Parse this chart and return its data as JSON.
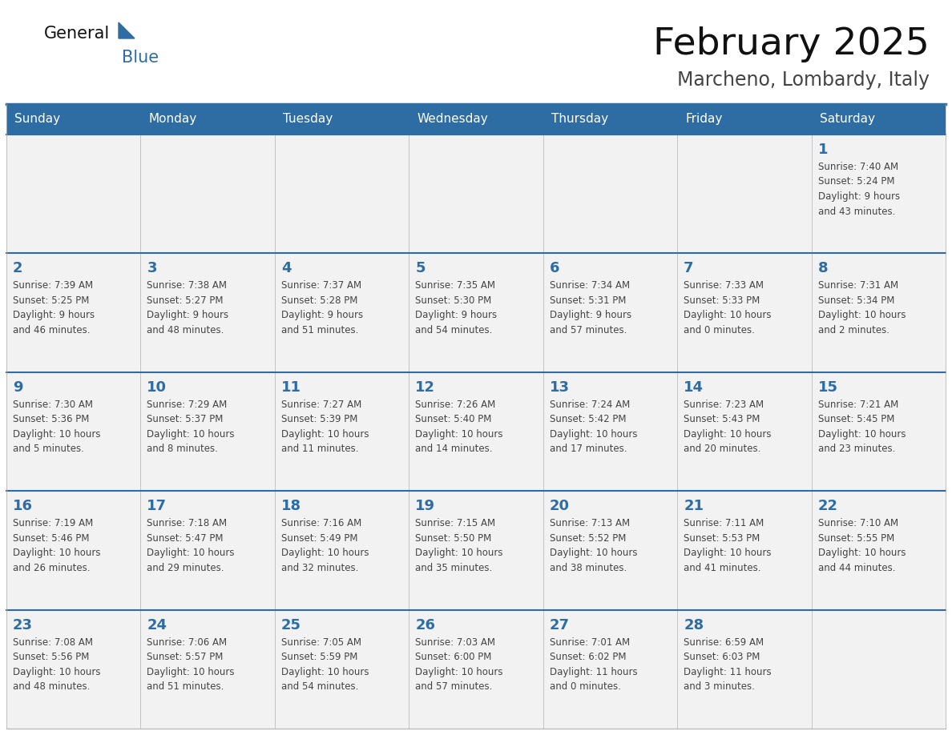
{
  "title": "February 2025",
  "subtitle": "Marcheno, Lombardy, Italy",
  "days_of_week": [
    "Sunday",
    "Monday",
    "Tuesday",
    "Wednesday",
    "Thursday",
    "Friday",
    "Saturday"
  ],
  "header_bg": "#2E6DA4",
  "header_text": "#FFFFFF",
  "cell_bg": "#F2F2F2",
  "border_color": "#2E6DA4",
  "cell_border_color": "#BBBBBB",
  "title_color": "#111111",
  "subtitle_color": "#444444",
  "day_num_color": "#2E6DA4",
  "cell_text_color": "#444444",
  "logo_general_color": "#111111",
  "logo_blue_color": "#2E6DA4",
  "weeks": [
    [
      {
        "day": null,
        "info": null
      },
      {
        "day": null,
        "info": null
      },
      {
        "day": null,
        "info": null
      },
      {
        "day": null,
        "info": null
      },
      {
        "day": null,
        "info": null
      },
      {
        "day": null,
        "info": null
      },
      {
        "day": 1,
        "info": "Sunrise: 7:40 AM\nSunset: 5:24 PM\nDaylight: 9 hours\nand 43 minutes."
      }
    ],
    [
      {
        "day": 2,
        "info": "Sunrise: 7:39 AM\nSunset: 5:25 PM\nDaylight: 9 hours\nand 46 minutes."
      },
      {
        "day": 3,
        "info": "Sunrise: 7:38 AM\nSunset: 5:27 PM\nDaylight: 9 hours\nand 48 minutes."
      },
      {
        "day": 4,
        "info": "Sunrise: 7:37 AM\nSunset: 5:28 PM\nDaylight: 9 hours\nand 51 minutes."
      },
      {
        "day": 5,
        "info": "Sunrise: 7:35 AM\nSunset: 5:30 PM\nDaylight: 9 hours\nand 54 minutes."
      },
      {
        "day": 6,
        "info": "Sunrise: 7:34 AM\nSunset: 5:31 PM\nDaylight: 9 hours\nand 57 minutes."
      },
      {
        "day": 7,
        "info": "Sunrise: 7:33 AM\nSunset: 5:33 PM\nDaylight: 10 hours\nand 0 minutes."
      },
      {
        "day": 8,
        "info": "Sunrise: 7:31 AM\nSunset: 5:34 PM\nDaylight: 10 hours\nand 2 minutes."
      }
    ],
    [
      {
        "day": 9,
        "info": "Sunrise: 7:30 AM\nSunset: 5:36 PM\nDaylight: 10 hours\nand 5 minutes."
      },
      {
        "day": 10,
        "info": "Sunrise: 7:29 AM\nSunset: 5:37 PM\nDaylight: 10 hours\nand 8 minutes."
      },
      {
        "day": 11,
        "info": "Sunrise: 7:27 AM\nSunset: 5:39 PM\nDaylight: 10 hours\nand 11 minutes."
      },
      {
        "day": 12,
        "info": "Sunrise: 7:26 AM\nSunset: 5:40 PM\nDaylight: 10 hours\nand 14 minutes."
      },
      {
        "day": 13,
        "info": "Sunrise: 7:24 AM\nSunset: 5:42 PM\nDaylight: 10 hours\nand 17 minutes."
      },
      {
        "day": 14,
        "info": "Sunrise: 7:23 AM\nSunset: 5:43 PM\nDaylight: 10 hours\nand 20 minutes."
      },
      {
        "day": 15,
        "info": "Sunrise: 7:21 AM\nSunset: 5:45 PM\nDaylight: 10 hours\nand 23 minutes."
      }
    ],
    [
      {
        "day": 16,
        "info": "Sunrise: 7:19 AM\nSunset: 5:46 PM\nDaylight: 10 hours\nand 26 minutes."
      },
      {
        "day": 17,
        "info": "Sunrise: 7:18 AM\nSunset: 5:47 PM\nDaylight: 10 hours\nand 29 minutes."
      },
      {
        "day": 18,
        "info": "Sunrise: 7:16 AM\nSunset: 5:49 PM\nDaylight: 10 hours\nand 32 minutes."
      },
      {
        "day": 19,
        "info": "Sunrise: 7:15 AM\nSunset: 5:50 PM\nDaylight: 10 hours\nand 35 minutes."
      },
      {
        "day": 20,
        "info": "Sunrise: 7:13 AM\nSunset: 5:52 PM\nDaylight: 10 hours\nand 38 minutes."
      },
      {
        "day": 21,
        "info": "Sunrise: 7:11 AM\nSunset: 5:53 PM\nDaylight: 10 hours\nand 41 minutes."
      },
      {
        "day": 22,
        "info": "Sunrise: 7:10 AM\nSunset: 5:55 PM\nDaylight: 10 hours\nand 44 minutes."
      }
    ],
    [
      {
        "day": 23,
        "info": "Sunrise: 7:08 AM\nSunset: 5:56 PM\nDaylight: 10 hours\nand 48 minutes."
      },
      {
        "day": 24,
        "info": "Sunrise: 7:06 AM\nSunset: 5:57 PM\nDaylight: 10 hours\nand 51 minutes."
      },
      {
        "day": 25,
        "info": "Sunrise: 7:05 AM\nSunset: 5:59 PM\nDaylight: 10 hours\nand 54 minutes."
      },
      {
        "day": 26,
        "info": "Sunrise: 7:03 AM\nSunset: 6:00 PM\nDaylight: 10 hours\nand 57 minutes."
      },
      {
        "day": 27,
        "info": "Sunrise: 7:01 AM\nSunset: 6:02 PM\nDaylight: 11 hours\nand 0 minutes."
      },
      {
        "day": 28,
        "info": "Sunrise: 6:59 AM\nSunset: 6:03 PM\nDaylight: 11 hours\nand 3 minutes."
      },
      {
        "day": null,
        "info": null
      }
    ]
  ]
}
